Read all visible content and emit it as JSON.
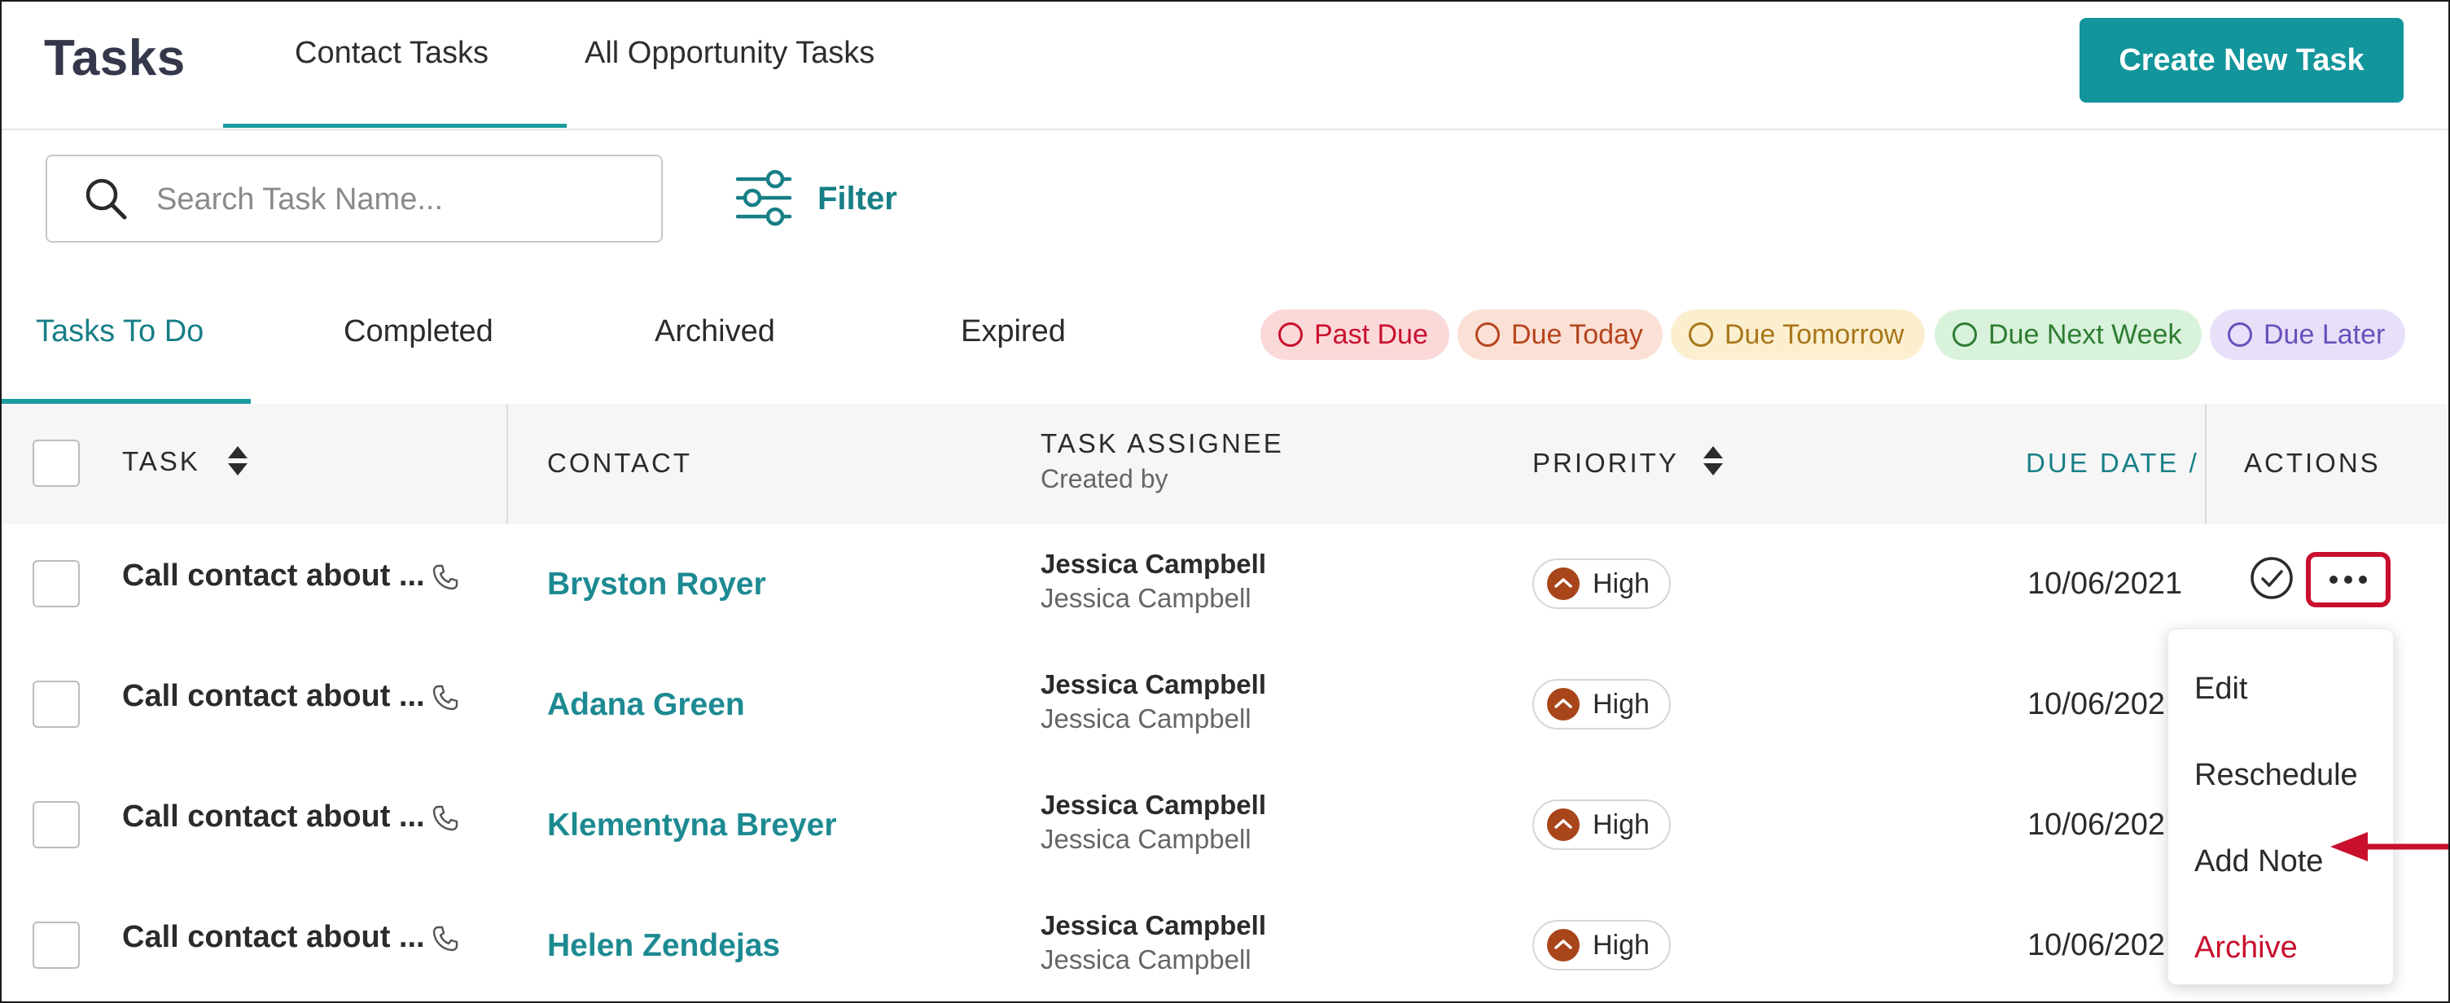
{
  "header": {
    "title": "Tasks",
    "tabs": [
      {
        "label": "Contact Tasks",
        "active": true
      },
      {
        "label": "All Opportunity Tasks",
        "active": false
      }
    ],
    "create_button": "Create New Task"
  },
  "search": {
    "placeholder": "Search Task Name...",
    "value": "",
    "filter_label": "Filter"
  },
  "status_tabs": [
    {
      "label": "Tasks To Do",
      "active": true
    },
    {
      "label": "Completed",
      "active": false
    },
    {
      "label": "Archived",
      "active": false
    },
    {
      "label": "Expired",
      "active": false
    }
  ],
  "legend": [
    {
      "label": "Past Due",
      "color": "#c8102e",
      "bg": "#fbd9d9"
    },
    {
      "label": "Due Today",
      "color": "#b5451b",
      "bg": "#fbe0d6"
    },
    {
      "label": "Due Tomorrow",
      "color": "#a8761a",
      "bg": "#fcefcf"
    },
    {
      "label": "Due Next Week",
      "color": "#2e7d32",
      "bg": "#d9f2dc"
    },
    {
      "label": "Due Later",
      "color": "#6b4fbb",
      "bg": "#e8e0f8"
    }
  ],
  "table": {
    "columns": {
      "task": "TASK",
      "contact": "CONTACT",
      "assignee": "TASK ASSIGNEE",
      "assignee_sub": "Created by",
      "priority": "PRIORITY",
      "due_date": "DUE DATE /",
      "actions": "ACTIONS"
    },
    "rows": [
      {
        "task": "Call contact about ...",
        "contact": "Bryston Royer",
        "assignee": "Jessica Campbell",
        "created_by": "Jessica Campbell",
        "priority": "High",
        "due_date": "10/06/2021"
      },
      {
        "task": "Call contact about ...",
        "contact": "Adana Green",
        "assignee": "Jessica Campbell",
        "created_by": "Jessica Campbell",
        "priority": "High",
        "due_date": "10/06/202"
      },
      {
        "task": "Call contact about ...",
        "contact": "Klementyna Breyer",
        "assignee": "Jessica Campbell",
        "created_by": "Jessica Campbell",
        "priority": "High",
        "due_date": "10/06/202"
      },
      {
        "task": "Call contact about ...",
        "contact": "Helen Zendejas",
        "assignee": "Jessica Campbell",
        "created_by": "Jessica Campbell",
        "priority": "High",
        "due_date": "10/06/202"
      }
    ]
  },
  "action_menu": {
    "items": [
      "Edit",
      "Reschedule",
      "Add Note",
      "Archive"
    ]
  },
  "icons": {
    "search": "search-icon",
    "filter": "filter-sliders-icon",
    "sort": "sort-icon",
    "phone": "phone-icon",
    "complete": "check-circle-icon",
    "more": "more-horizontal-icon",
    "arrow": "arrow-left-icon"
  },
  "colors": {
    "accent": "#12959b",
    "link": "#1d8a92",
    "highlight_border": "#c8102e",
    "priority_high": "#a8451a"
  }
}
